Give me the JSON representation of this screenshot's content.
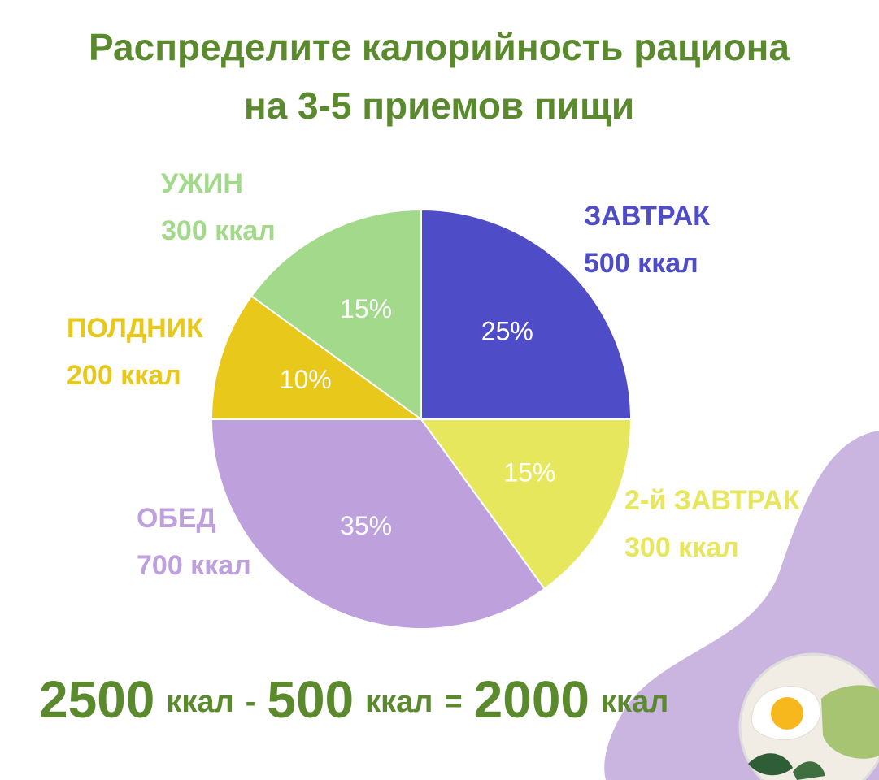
{
  "chart_data": {
    "type": "pie",
    "title": [
      "Распределите калорийность рациона",
      "на 3-5 приемов пищи"
    ],
    "categories": [
      "ЗАВТРАК",
      "2-й ЗАВТРАК",
      "ОБЕД",
      "ПОЛДНИК",
      "УЖИН"
    ],
    "calorie_labels": [
      "500 ккал",
      "300 ккал",
      "700 ккал",
      "200 ккал",
      "300 ккал"
    ],
    "values": [
      25,
      15,
      35,
      10,
      15
    ],
    "value_labels": [
      "25%",
      "15%",
      "35%",
      "10%",
      "15%"
    ],
    "colors": [
      "#4f4cc7",
      "#e6e75c",
      "#bea0dd",
      "#e7c81b",
      "#a2d98b"
    ],
    "equation": [
      "2500",
      "ккал",
      "-",
      "500",
      "ккал",
      "=",
      "2000",
      "ккал"
    ]
  }
}
